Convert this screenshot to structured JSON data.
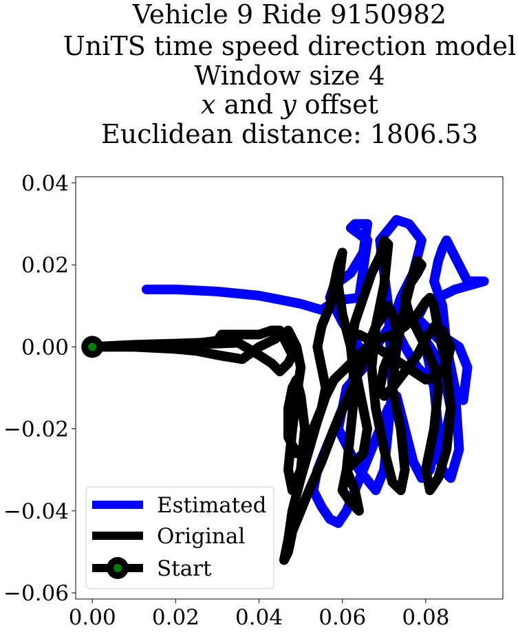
{
  "chart_data": {
    "type": "line",
    "title_lines": [
      "Vehicle 9 Ride 9150982",
      "UniTS time speed direction model",
      "Window size 4",
      "x and y offset",
      "Euclidean distance: 1806.53"
    ],
    "xlabel": "",
    "ylabel": "",
    "xlim": [
      -0.004,
      0.0985
    ],
    "ylim": [
      -0.0615,
      0.0415
    ],
    "xticks": [
      0.0,
      0.02,
      0.04,
      0.06,
      0.08
    ],
    "xtick_labels": [
      "0.00",
      "0.02",
      "0.04",
      "0.06",
      "0.08"
    ],
    "yticks": [
      0.04,
      0.02,
      0.0,
      -0.02,
      -0.04,
      -0.06
    ],
    "ytick_labels": [
      "0.04",
      "0.02",
      "0.00",
      "−0.02",
      "−0.04",
      "−0.06"
    ],
    "grid": false,
    "legend_position": "lower-left",
    "series": [
      {
        "name": "Estimated",
        "color": "#0000ff",
        "x": [
          0.013,
          0.02,
          0.03,
          0.035,
          0.04,
          0.045,
          0.05,
          0.055,
          0.058,
          0.06,
          0.064,
          0.066,
          0.062,
          0.063,
          0.066,
          0.065,
          0.062,
          0.058,
          0.057,
          0.06,
          0.064,
          0.066,
          0.061,
          0.059,
          0.064,
          0.068,
          0.07,
          0.072,
          0.071,
          0.069,
          0.073,
          0.076,
          0.079,
          0.077,
          0.074,
          0.072,
          0.075,
          0.078,
          0.083,
          0.085,
          0.084,
          0.082,
          0.083,
          0.084,
          0.085,
          0.088,
          0.09,
          0.094,
          0.087,
          0.083,
          0.08,
          0.078,
          0.08,
          0.082,
          0.085,
          0.086,
          0.085,
          0.083,
          0.084,
          0.086,
          0.088,
          0.087,
          0.085,
          0.082,
          0.08,
          0.078,
          0.075,
          0.072,
          0.07,
          0.068,
          0.065,
          0.063,
          0.062,
          0.06,
          0.058,
          0.056,
          0.054,
          0.053,
          0.055,
          0.057,
          0.059,
          0.061,
          0.063,
          0.065,
          0.067,
          0.069,
          0.071,
          0.073,
          0.075,
          0.077,
          0.079,
          0.081,
          0.083,
          0.082,
          0.08,
          0.078,
          0.079,
          0.081,
          0.084,
          0.087,
          0.089,
          0.09,
          0.088,
          0.085
        ],
        "y": [
          0.014,
          0.014,
          0.0135,
          0.013,
          0.0125,
          0.0115,
          0.0105,
          0.009,
          0.011,
          0.0115,
          0.012,
          0.026,
          0.029,
          0.03,
          0.03,
          0.023,
          0.018,
          0.015,
          0.012,
          0.006,
          0.0,
          -0.004,
          -0.01,
          -0.02,
          -0.03,
          -0.035,
          -0.03,
          -0.01,
          0.01,
          0.026,
          0.031,
          0.03,
          0.026,
          0.018,
          0.012,
          0.006,
          0.0,
          -0.005,
          -0.01,
          0.0,
          0.01,
          0.016,
          0.021,
          0.024,
          0.026,
          0.02,
          0.016,
          0.016,
          0.014,
          0.012,
          0.011,
          0.007,
          0.0,
          -0.005,
          -0.01,
          -0.015,
          -0.02,
          -0.025,
          -0.03,
          -0.032,
          -0.025,
          -0.01,
          0.0,
          0.003,
          0.005,
          0.007,
          0.008,
          0.006,
          0.003,
          0.0,
          -0.003,
          -0.006,
          -0.01,
          -0.015,
          -0.02,
          -0.025,
          -0.03,
          -0.035,
          -0.039,
          -0.042,
          -0.043,
          -0.04,
          -0.035,
          -0.03,
          -0.025,
          -0.02,
          -0.015,
          -0.012,
          -0.02,
          -0.028,
          -0.032,
          -0.03,
          -0.02,
          -0.01,
          0.0,
          0.005,
          0.003,
          0.0,
          -0.005,
          -0.01,
          -0.013,
          -0.005,
          0.0,
          0.002
        ]
      },
      {
        "name": "Original",
        "color": "#000000",
        "x": [
          0.0,
          0.01,
          0.02,
          0.026,
          0.03,
          0.031,
          0.035,
          0.04,
          0.043,
          0.045,
          0.044,
          0.04,
          0.036,
          0.03,
          0.025,
          0.02,
          0.01,
          0.0,
          0.0,
          0.01,
          0.02,
          0.03,
          0.035,
          0.04,
          0.043,
          0.045,
          0.047,
          0.048,
          0.046,
          0.047,
          0.049,
          0.05,
          0.049,
          0.048,
          0.047,
          0.048,
          0.05,
          0.051,
          0.05,
          0.049,
          0.048,
          0.047,
          0.047,
          0.049,
          0.051,
          0.053,
          0.055,
          0.056,
          0.055,
          0.054,
          0.055,
          0.057,
          0.058,
          0.059,
          0.06,
          0.059,
          0.06,
          0.062,
          0.063,
          0.062,
          0.061,
          0.063,
          0.064,
          0.062,
          0.06,
          0.061,
          0.063,
          0.065,
          0.066,
          0.064,
          0.062,
          0.063,
          0.065,
          0.067,
          0.069,
          0.07,
          0.071,
          0.07,
          0.068,
          0.067,
          0.068,
          0.07,
          0.072,
          0.074,
          0.075,
          0.074,
          0.072,
          0.073,
          0.075,
          0.077,
          0.078,
          0.079,
          0.078,
          0.076,
          0.075,
          0.076,
          0.078,
          0.08,
          0.082,
          0.083,
          0.082,
          0.08,
          0.081,
          0.083,
          0.085,
          0.086,
          0.085,
          0.083,
          0.082,
          0.081,
          0.08,
          0.078,
          0.075,
          0.072,
          0.069,
          0.066,
          0.064,
          0.062,
          0.06,
          0.058,
          0.056,
          0.054,
          0.052,
          0.05,
          0.048,
          0.047,
          0.046,
          0.047,
          0.048,
          0.05,
          0.052,
          0.055,
          0.058,
          0.061,
          0.064,
          0.066,
          0.068,
          0.07,
          0.071,
          0.072,
          0.073,
          0.072,
          0.07,
          0.069,
          0.07,
          0.072,
          0.075,
          0.078,
          0.08,
          0.082,
          0.084,
          0.086,
          0.085,
          0.083,
          0.08,
          0.077,
          0.074,
          0.071,
          0.068,
          0.066,
          0.064
        ],
        "y": [
          0.0,
          0.0005,
          0.0008,
          0.001,
          0.0015,
          0.003,
          0.003,
          0.003,
          0.004,
          0.004,
          0.002,
          0.0,
          -0.003,
          -0.002,
          -0.001,
          -0.0005,
          0.0,
          0.0,
          0.0,
          0.0003,
          0.0006,
          0.0008,
          0.001,
          -0.002,
          -0.004,
          -0.006,
          -0.004,
          -0.002,
          0.002,
          0.004,
          0.0,
          -0.005,
          -0.012,
          -0.02,
          -0.03,
          -0.035,
          -0.03,
          -0.02,
          -0.012,
          -0.008,
          -0.01,
          -0.015,
          -0.022,
          -0.026,
          -0.024,
          -0.02,
          -0.015,
          -0.01,
          -0.005,
          0.0,
          0.005,
          0.01,
          0.015,
          0.02,
          0.023,
          0.015,
          0.008,
          0.0,
          -0.01,
          -0.02,
          -0.03,
          -0.035,
          -0.04,
          -0.038,
          -0.035,
          -0.03,
          -0.028,
          -0.026,
          -0.02,
          -0.01,
          0.0,
          0.006,
          0.012,
          0.018,
          0.022,
          0.026,
          0.025,
          0.015,
          0.005,
          -0.005,
          -0.015,
          -0.025,
          -0.033,
          -0.035,
          -0.03,
          -0.02,
          -0.01,
          0.0,
          0.01,
          0.018,
          0.021,
          0.02,
          0.018,
          0.015,
          0.012,
          0.008,
          0.004,
          0.0,
          -0.005,
          -0.01,
          -0.02,
          -0.03,
          -0.035,
          -0.032,
          -0.025,
          -0.015,
          -0.005,
          0.004,
          0.01,
          0.012,
          0.011,
          0.008,
          0.005,
          0.003,
          0.002,
          0.0,
          -0.002,
          -0.004,
          -0.006,
          -0.008,
          -0.012,
          -0.018,
          -0.025,
          -0.032,
          -0.04,
          -0.047,
          -0.052,
          -0.05,
          -0.045,
          -0.04,
          -0.035,
          -0.028,
          -0.02,
          -0.013,
          -0.006,
          0.0,
          0.005,
          0.008,
          0.01,
          0.008,
          0.004,
          0.0,
          -0.005,
          -0.01,
          -0.012,
          -0.01,
          -0.006,
          -0.002,
          0.002,
          0.005,
          0.004,
          0.0,
          -0.004,
          -0.007,
          -0.008,
          -0.006,
          -0.004,
          -0.002,
          0.0,
          0.002,
          0.003
        ]
      }
    ],
    "start_point": {
      "name": "Start",
      "x": 0.0,
      "y": 0.0,
      "marker_color": "#008000"
    }
  }
}
